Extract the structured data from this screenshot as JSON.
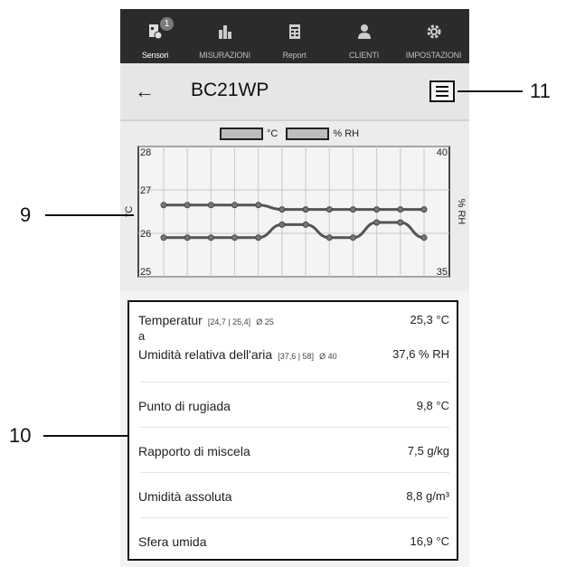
{
  "tabs": [
    {
      "label": "Sensori",
      "icon": "sensor-icon",
      "active": true,
      "badge": "1"
    },
    {
      "label": "MISURAZIONI",
      "icon": "bar-chart-icon",
      "active": false
    },
    {
      "label": "Report",
      "icon": "report-icon",
      "active": false
    },
    {
      "label": "CLIENTI",
      "icon": "clients-icon",
      "active": false
    },
    {
      "label": "IMPOSTAZIONI",
      "icon": "gear-icon",
      "active": false
    }
  ],
  "header": {
    "title": "BC21WP",
    "back_icon": "←"
  },
  "chart_data": {
    "type": "line",
    "legend": [
      "°C",
      "% RH"
    ],
    "left_axis": {
      "label": "°C",
      "ticks": [
        "28",
        "27",
        "26",
        "25"
      ],
      "ylim": [
        25,
        28
      ]
    },
    "right_axis": {
      "label": "% RH",
      "ticks": [
        "40",
        "35"
      ],
      "ylim": [
        35,
        40
      ]
    },
    "x": [
      1,
      2,
      3,
      4,
      5,
      6,
      7,
      8,
      9,
      10,
      11,
      12
    ],
    "series": [
      {
        "name": "°C",
        "values": [
          26.65,
          26.65,
          26.65,
          26.65,
          26.65,
          26.55,
          26.55,
          26.55,
          26.55,
          26.55,
          26.55,
          26.55
        ]
      },
      {
        "name": "% RH",
        "values": [
          25.9,
          25.9,
          25.9,
          25.9,
          25.9,
          26.2,
          26.2,
          25.9,
          25.9,
          26.25,
          26.25,
          25.9
        ]
      }
    ],
    "grid": true
  },
  "readings": [
    {
      "label": "Temperatur",
      "label2": "a",
      "range": "[24,7 | 25,4]",
      "avg": "Ø 25",
      "value": "25,3 °C"
    },
    {
      "label": "Umidità relativa dell'aria",
      "range": "[37,6 | 58]",
      "avg": "Ø 40",
      "value": "37,6 % RH"
    },
    {
      "label": "Punto di rugiada",
      "value": "9,8 °C"
    },
    {
      "label": "Rapporto di miscela",
      "value": "7,5 g/kg"
    },
    {
      "label": "Umidità assoluta",
      "value": "8,8 g/m³"
    },
    {
      "label": "Sfera umida",
      "value": "16,9 °C"
    }
  ],
  "callouts": {
    "c9": "9",
    "c10": "10",
    "c11": "11"
  }
}
